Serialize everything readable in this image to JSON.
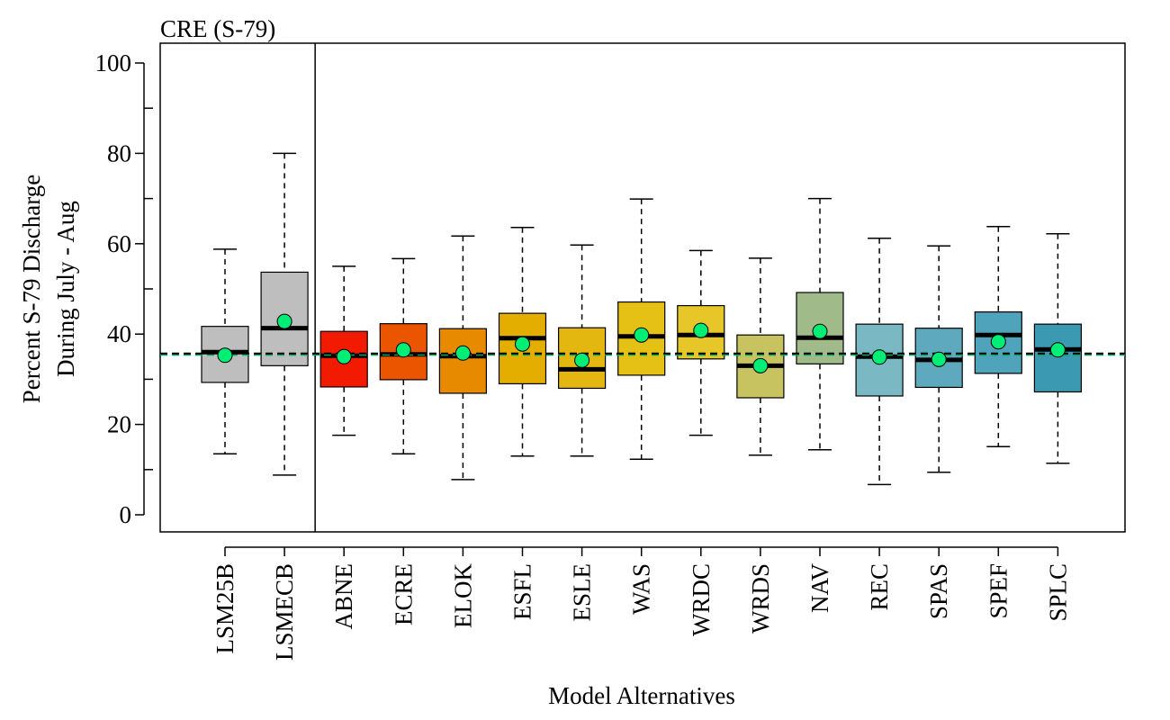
{
  "chart_data": {
    "type": "box",
    "title": "CRE (S-79)",
    "xlabel": "Model Alternatives",
    "ylabel_lines": [
      "Percent S-79 Discharge",
      "During July - Aug"
    ],
    "ylim": [
      -4,
      104
    ],
    "yticks": [
      0,
      20,
      40,
      60,
      80,
      100
    ],
    "grid": false,
    "reference_lines": {
      "black_dashed": 35.7,
      "green_dashed": 35.4
    },
    "categories": [
      "LSM25B",
      "LSMECB",
      "ABNE",
      "ECRE",
      "ELOK",
      "ESFL",
      "ESLE",
      "WAS",
      "WRDC",
      "WRDS",
      "NAV",
      "REC",
      "SPAS",
      "SPEF",
      "SPLC"
    ],
    "colors": [
      "#BEBEBE",
      "#BEBEBE",
      "#F21A00",
      "#EB5500",
      "#E78A00",
      "#E3AE00",
      "#E3B710",
      "#E5C015",
      "#E7C62A",
      "#C6C360",
      "#A1BA89",
      "#7AB8C4",
      "#5FA9BE",
      "#4FA3BA",
      "#3B9AB2"
    ],
    "mean_color": "#00EE76",
    "boxes": [
      {
        "name": "LSM25B",
        "whisker_low": 13.5,
        "q1": 29.3,
        "median": 36.0,
        "q3": 41.7,
        "whisker_high": 58.8,
        "mean": 35.3
      },
      {
        "name": "LSMECB",
        "whisker_low": 8.8,
        "q1": 33.0,
        "median": 41.3,
        "q3": 53.7,
        "whisker_high": 80.0,
        "mean": 42.8
      },
      {
        "name": "ABNE",
        "whisker_low": 17.6,
        "q1": 28.3,
        "median": 35.2,
        "q3": 40.6,
        "whisker_high": 55.0,
        "mean": 35.0
      },
      {
        "name": "ECRE",
        "whisker_low": 13.5,
        "q1": 29.9,
        "median": 35.5,
        "q3": 42.3,
        "whisker_high": 56.7,
        "mean": 36.5
      },
      {
        "name": "ELOK",
        "whisker_low": 7.8,
        "q1": 26.9,
        "median": 35.1,
        "q3": 41.2,
        "whisker_high": 61.7,
        "mean": 35.8
      },
      {
        "name": "ESFL",
        "whisker_low": 13.0,
        "q1": 29.0,
        "median": 39.1,
        "q3": 44.6,
        "whisker_high": 63.6,
        "mean": 37.8
      },
      {
        "name": "ESLE",
        "whisker_low": 13.0,
        "q1": 28.0,
        "median": 32.2,
        "q3": 41.4,
        "whisker_high": 59.7,
        "mean": 34.2
      },
      {
        "name": "WAS",
        "whisker_low": 12.3,
        "q1": 30.9,
        "median": 39.5,
        "q3": 47.1,
        "whisker_high": 69.9,
        "mean": 39.8
      },
      {
        "name": "WRDC",
        "whisker_low": 17.6,
        "q1": 34.5,
        "median": 39.8,
        "q3": 46.3,
        "whisker_high": 58.5,
        "mean": 40.8
      },
      {
        "name": "WRDS",
        "whisker_low": 13.2,
        "q1": 25.9,
        "median": 33.0,
        "q3": 39.8,
        "whisker_high": 56.8,
        "mean": 33.0
      },
      {
        "name": "NAV",
        "whisker_low": 14.4,
        "q1": 33.4,
        "median": 39.2,
        "q3": 49.2,
        "whisker_high": 70.0,
        "mean": 40.6
      },
      {
        "name": "REC",
        "whisker_low": 6.7,
        "q1": 26.3,
        "median": 35.0,
        "q3": 42.2,
        "whisker_high": 61.2,
        "mean": 34.9
      },
      {
        "name": "SPAS",
        "whisker_low": 9.4,
        "q1": 28.2,
        "median": 34.3,
        "q3": 41.3,
        "whisker_high": 59.5,
        "mean": 34.4
      },
      {
        "name": "SPEF",
        "whisker_low": 15.1,
        "q1": 31.3,
        "median": 39.8,
        "q3": 44.9,
        "whisker_high": 63.8,
        "mean": 38.3
      },
      {
        "name": "SPLC",
        "whisker_low": 11.4,
        "q1": 27.2,
        "median": 36.6,
        "q3": 42.2,
        "whisker_high": 62.2,
        "mean": 36.5
      }
    ],
    "separator_after_index": 1
  }
}
